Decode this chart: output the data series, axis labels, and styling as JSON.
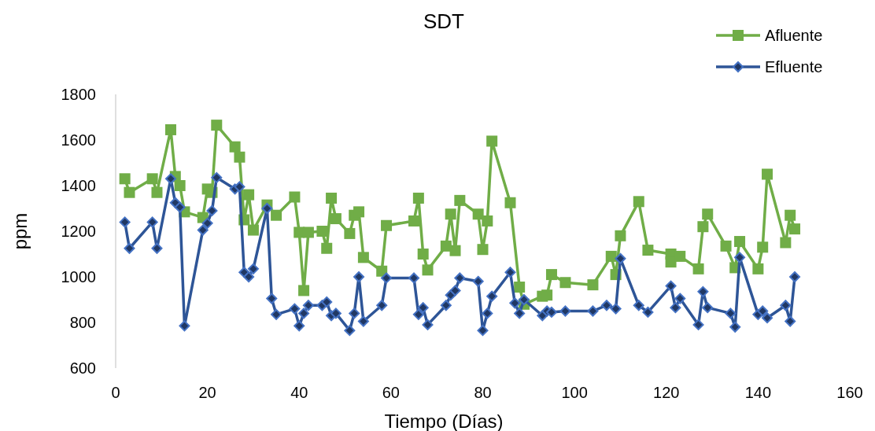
{
  "chart_data": {
    "type": "line",
    "title": "SDT",
    "xlabel": "Tiempo (Días)",
    "ylabel": "ppm",
    "xlim": [
      0,
      160
    ],
    "xticks": [
      0,
      20,
      40,
      60,
      80,
      100,
      120,
      140,
      160
    ],
    "ylim": [
      600,
      1800
    ],
    "yticks": [
      600,
      800,
      1000,
      1200,
      1400,
      1600,
      1800
    ],
    "grid": false,
    "legend": "top right",
    "line_style": "solid",
    "series": [
      {
        "name": "Afluente",
        "color": "#70ad47",
        "marker": "square",
        "x": [
          2,
          3,
          8,
          9,
          12,
          13,
          14,
          15,
          19,
          20,
          21,
          22,
          26,
          27,
          28,
          29,
          30,
          33,
          35,
          39,
          40,
          41,
          42,
          45,
          46,
          47,
          48,
          51,
          52,
          53,
          54,
          58,
          59,
          65,
          66,
          67,
          68,
          72,
          73,
          74,
          75,
          79,
          80,
          81,
          82,
          86,
          88,
          89,
          93,
          94,
          95,
          98,
          104,
          108,
          109,
          110,
          114,
          116,
          121,
          121,
          123,
          127,
          128,
          129,
          133,
          135,
          136,
          140,
          141,
          142,
          146,
          147,
          148
        ],
        "values": [
          1430,
          1370,
          1430,
          1370,
          1645,
          1440,
          1400,
          1285,
          1260,
          1385,
          1370,
          1665,
          1570,
          1525,
          1250,
          1360,
          1205,
          1315,
          1270,
          1350,
          1195,
          940,
          1195,
          1200,
          1125,
          1345,
          1255,
          1190,
          1270,
          1285,
          1085,
          1025,
          1225,
          1245,
          1345,
          1100,
          1030,
          1135,
          1275,
          1115,
          1335,
          1275,
          1120,
          1245,
          1595,
          1325,
          955,
          880,
          915,
          920,
          1010,
          975,
          965,
          1090,
          1010,
          1180,
          1330,
          1117,
          1100,
          1065,
          1090,
          1035,
          1220,
          1275,
          1135,
          1040,
          1155,
          1035,
          1130,
          1450,
          1150,
          1270,
          1210
        ]
      },
      {
        "name": "Efluente",
        "color": "#2e5597",
        "marker": "diamond",
        "x": [
          2,
          3,
          8,
          9,
          12,
          13,
          14,
          15,
          19,
          20,
          21,
          22,
          26,
          27,
          28,
          29,
          30,
          33,
          34,
          35,
          39,
          40,
          41,
          42,
          45,
          46,
          47,
          48,
          51,
          52,
          53,
          54,
          58,
          59,
          65,
          66,
          67,
          68,
          72,
          73,
          74,
          75,
          79,
          80,
          81,
          82,
          86,
          87,
          88,
          89,
          93,
          94,
          95,
          98,
          104,
          107,
          109,
          110,
          114,
          116,
          121,
          122,
          123,
          127,
          128,
          129,
          134,
          135,
          136,
          140,
          141,
          142,
          146,
          147,
          148
        ],
        "values": [
          1240,
          1125,
          1240,
          1125,
          1430,
          1325,
          1305,
          785,
          1205,
          1235,
          1290,
          1435,
          1385,
          1395,
          1020,
          1000,
          1035,
          1300,
          905,
          835,
          860,
          785,
          840,
          875,
          875,
          890,
          830,
          840,
          765,
          840,
          1000,
          805,
          875,
          995,
          995,
          835,
          865,
          790,
          875,
          920,
          940,
          995,
          980,
          765,
          840,
          915,
          1020,
          885,
          840,
          900,
          830,
          850,
          845,
          850,
          850,
          875,
          860,
          1080,
          875,
          845,
          960,
          865,
          905,
          790,
          935,
          865,
          840,
          780,
          1085,
          835,
          850,
          820,
          875,
          805,
          1000
        ]
      }
    ]
  }
}
